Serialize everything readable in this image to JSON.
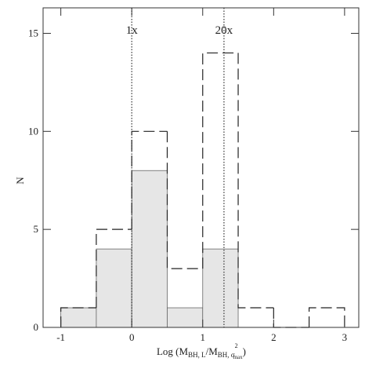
{
  "chart_data": {
    "type": "histogram",
    "xlabel": [
      {
        "text": "Log (M"
      },
      {
        "text": "BH, L",
        "shift": "sub"
      },
      {
        "text": "/M"
      },
      {
        "text": "BH, σ",
        "shift": "sub"
      },
      {
        "text": "2",
        "shift": "sup"
      },
      {
        "text": "max",
        "shift": "subsub"
      },
      {
        "text": ")"
      }
    ],
    "ylabel": "N",
    "xlim": [
      -1.25,
      3.2
    ],
    "ylim": [
      0,
      16.3
    ],
    "xticks": [
      -1,
      0,
      1,
      2,
      3
    ],
    "yticks": [
      0,
      5,
      10,
      15
    ],
    "series": [
      {
        "bins": [
          -1,
          -0.5,
          0,
          0.5,
          1,
          1.5
        ],
        "values": [
          1,
          4,
          8,
          1,
          4
        ],
        "color": "#e6e6e6",
        "style": "filled"
      },
      {
        "bins": [
          -1,
          -0.5,
          0,
          0.5,
          1,
          1.5,
          2,
          2.5,
          3
        ],
        "values": [
          1,
          5,
          10,
          3,
          14,
          1,
          0,
          1
        ],
        "color": "#222222",
        "style": "dashed"
      }
    ],
    "annotations": [
      {
        "text": "1x",
        "x": 0
      },
      {
        "text": "20x",
        "x": 1.3
      }
    ]
  }
}
